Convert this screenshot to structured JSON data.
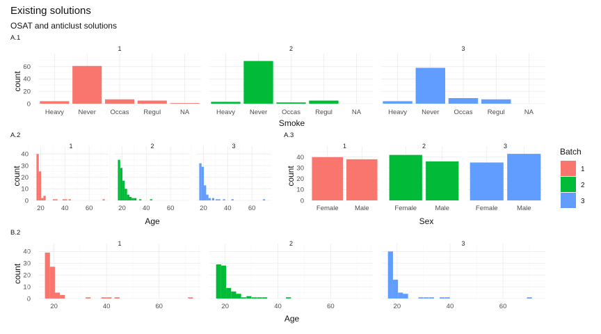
{
  "title": "Existing solutions",
  "subtitle": "OSAT and anticlust solutions",
  "colors": {
    "1": "#F8766D",
    "2": "#00BA38",
    "3": "#619CFF"
  },
  "legend": {
    "title": "Batch",
    "items": [
      "1",
      "2",
      "3"
    ]
  },
  "chart_data": [
    {
      "tag": "A.1",
      "type": "bar",
      "facets": [
        "1",
        "2",
        "3"
      ],
      "categories": [
        "Heavy",
        "Never",
        "Occas",
        "Regul",
        "NA"
      ],
      "series": [
        {
          "name": "1",
          "values": [
            4,
            61,
            7,
            5,
            1
          ]
        },
        {
          "name": "2",
          "values": [
            3,
            69,
            2,
            5,
            0
          ]
        },
        {
          "name": "3",
          "values": [
            4,
            58,
            9,
            7,
            0
          ]
        }
      ],
      "xlabel": "Smoke",
      "ylabel": "count",
      "ylim": [
        0,
        72
      ],
      "yticks": [
        0,
        20,
        40,
        60
      ]
    },
    {
      "tag": "A.2",
      "type": "bar",
      "facets": [
        "1",
        "2",
        "3"
      ],
      "bin_width": 1.9,
      "series": [
        {
          "name": "1",
          "bins": [
            [
              17.5,
              40
            ],
            [
              19.4,
              25
            ],
            [
              21.3,
              2
            ],
            [
              23.2,
              4
            ],
            [
              31,
              1
            ],
            [
              33,
              1
            ],
            [
              39,
              1
            ],
            [
              41,
              1
            ],
            [
              44,
              1
            ],
            [
              72,
              1
            ]
          ]
        },
        {
          "name": "2",
          "bins": [
            [
              17.5,
              35
            ],
            [
              19.4,
              28
            ],
            [
              21.3,
              17
            ],
            [
              23.2,
              10
            ],
            [
              25.1,
              5
            ],
            [
              27,
              3
            ],
            [
              29,
              2
            ],
            [
              31,
              2
            ],
            [
              35,
              1
            ],
            [
              44,
              1
            ]
          ]
        },
        {
          "name": "3",
          "bins": [
            [
              17.5,
              32
            ],
            [
              19.4,
              29
            ],
            [
              21.3,
              13
            ],
            [
              23.2,
              5
            ],
            [
              25.1,
              2
            ],
            [
              28,
              2
            ],
            [
              31,
              1
            ],
            [
              33,
              1
            ],
            [
              37,
              1
            ],
            [
              44,
              1
            ],
            [
              70,
              1
            ]
          ]
        }
      ],
      "xlabel": "Age",
      "ylabel": "count",
      "xlim": [
        14,
        76
      ],
      "xticks": [
        20,
        40,
        60
      ],
      "ylim": [
        0,
        42
      ],
      "yticks": [
        0,
        10,
        20,
        30,
        40
      ]
    },
    {
      "tag": "A.3",
      "type": "bar",
      "facets": [
        "1",
        "2",
        "3"
      ],
      "categories": [
        "Female",
        "Male"
      ],
      "series": [
        {
          "name": "1",
          "values": [
            40,
            38
          ]
        },
        {
          "name": "2",
          "values": [
            42,
            36
          ]
        },
        {
          "name": "3",
          "values": [
            35,
            43
          ]
        }
      ],
      "xlabel": "Sex",
      "ylabel": "count",
      "ylim": [
        0,
        45
      ],
      "yticks": [
        0,
        10,
        20,
        30,
        40
      ]
    },
    {
      "tag": "B.2",
      "type": "bar",
      "facets": [
        "1",
        "2",
        "3"
      ],
      "bin_width": 1.9,
      "series": [
        {
          "name": "1",
          "bins": [
            [
              17.5,
              39
            ],
            [
              19.4,
              27
            ],
            [
              21.3,
              5
            ],
            [
              23.2,
              3
            ],
            [
              33,
              1
            ],
            [
              39,
              1
            ],
            [
              41,
              1
            ],
            [
              44,
              1
            ],
            [
              72,
              1
            ]
          ]
        },
        {
          "name": "2",
          "bins": [
            [
              17.5,
              29
            ],
            [
              19.4,
              28
            ],
            [
              21.3,
              9
            ],
            [
              23.2,
              6
            ],
            [
              25.1,
              4
            ],
            [
              27,
              1
            ],
            [
              29,
              2
            ],
            [
              31,
              1
            ],
            [
              33,
              1
            ],
            [
              35,
              1
            ],
            [
              44,
              1
            ]
          ]
        },
        {
          "name": "3",
          "bins": [
            [
              17.5,
              40
            ],
            [
              19.4,
              16
            ],
            [
              21.3,
              5
            ],
            [
              23.2,
              4
            ],
            [
              29,
              1
            ],
            [
              31,
              1
            ],
            [
              33,
              1
            ],
            [
              37,
              1
            ],
            [
              39,
              1
            ],
            [
              70,
              1
            ]
          ]
        }
      ],
      "xlabel": "Age",
      "ylabel": "count",
      "xlim": [
        14,
        76
      ],
      "xticks": [
        20,
        40,
        60
      ],
      "ylim": [
        0,
        42
      ],
      "yticks": [
        0,
        10,
        20,
        30,
        40
      ]
    }
  ]
}
